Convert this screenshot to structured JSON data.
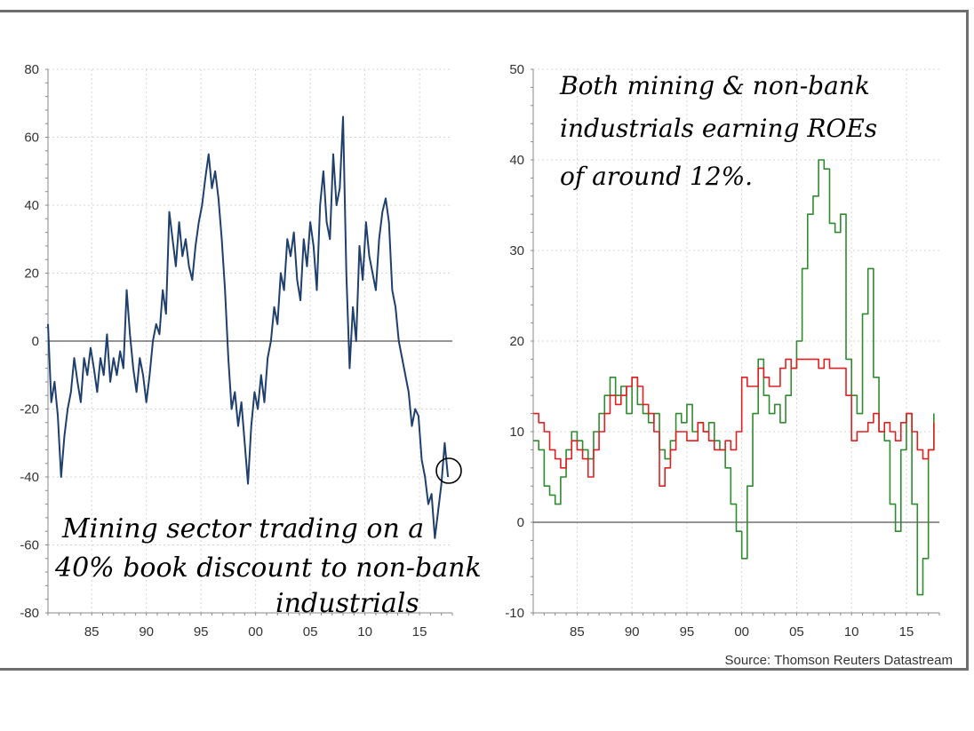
{
  "source": "Source: Thomson Reuters Datastream",
  "chart_data": [
    {
      "type": "line",
      "xlim": [
        1981,
        2018
      ],
      "ylim": [
        -80,
        80
      ],
      "x_ticks": [
        1985,
        1990,
        1995,
        2000,
        2005,
        2010,
        2015
      ],
      "x_tick_labels": [
        "85",
        "90",
        "95",
        "00",
        "05",
        "10",
        "15"
      ],
      "y_ticks": [
        -80,
        -60,
        -40,
        -20,
        0,
        20,
        40,
        60,
        80
      ],
      "y_tick_labels": [
        "-80",
        "-60",
        "-40",
        "-20",
        "0",
        "20",
        "40",
        "60",
        "80"
      ],
      "grid": true,
      "zero_line": true,
      "annotation_lines": [
        "Mining sector trading on a",
        "40% book discount to non-bank",
        "industrials"
      ],
      "series": [
        {
          "color": "#1f3f6e",
          "x": [
            1981.0,
            1981.3,
            1981.6,
            1981.9,
            1982.2,
            1982.5,
            1982.8,
            1983.1,
            1983.4,
            1983.7,
            1984.0,
            1984.3,
            1984.6,
            1984.9,
            1985.2,
            1985.5,
            1985.8,
            1986.1,
            1986.4,
            1986.7,
            1987.0,
            1987.3,
            1987.6,
            1987.9,
            1988.2,
            1988.5,
            1988.8,
            1989.1,
            1989.4,
            1989.7,
            1990.0,
            1990.3,
            1990.6,
            1990.9,
            1991.2,
            1991.5,
            1991.8,
            1992.1,
            1992.4,
            1992.7,
            1993.0,
            1993.3,
            1993.6,
            1993.9,
            1994.2,
            1994.5,
            1994.8,
            1995.1,
            1995.4,
            1995.7,
            1996.0,
            1996.3,
            1996.6,
            1996.9,
            1997.2,
            1997.5,
            1997.8,
            1998.1,
            1998.4,
            1998.7,
            1999.0,
            1999.3,
            1999.6,
            1999.9,
            2000.2,
            2000.5,
            2000.8,
            2001.1,
            2001.4,
            2001.7,
            2002.0,
            2002.3,
            2002.6,
            2002.9,
            2003.2,
            2003.5,
            2003.8,
            2004.1,
            2004.4,
            2004.7,
            2005.0,
            2005.3,
            2005.6,
            2005.9,
            2006.2,
            2006.5,
            2006.8,
            2007.1,
            2007.4,
            2007.7,
            2008.0,
            2008.3,
            2008.6,
            2008.9,
            2009.2,
            2009.5,
            2009.8,
            2010.1,
            2010.4,
            2010.7,
            2011.0,
            2011.3,
            2011.6,
            2011.9,
            2012.2,
            2012.5,
            2012.8,
            2013.1,
            2013.4,
            2013.7,
            2014.0,
            2014.3,
            2014.6,
            2014.9,
            2015.2,
            2015.5,
            2015.8,
            2016.1,
            2016.4,
            2016.7,
            2017.0,
            2017.3,
            2017.6
          ],
          "y": [
            5,
            -18,
            -12,
            -22,
            -40,
            -28,
            -20,
            -15,
            -5,
            -12,
            -18,
            -5,
            -10,
            -2,
            -8,
            -15,
            -5,
            -10,
            2,
            -12,
            -5,
            -10,
            -3,
            -8,
            15,
            2,
            -8,
            -15,
            -5,
            -10,
            -18,
            -10,
            0,
            5,
            2,
            15,
            8,
            38,
            30,
            22,
            35,
            25,
            30,
            22,
            18,
            28,
            35,
            40,
            48,
            55,
            45,
            50,
            42,
            30,
            15,
            -5,
            -20,
            -15,
            -25,
            -18,
            -30,
            -42,
            -25,
            -15,
            -20,
            -10,
            -18,
            -5,
            0,
            10,
            5,
            20,
            15,
            30,
            25,
            32,
            18,
            12,
            30,
            22,
            35,
            28,
            15,
            40,
            50,
            35,
            30,
            55,
            40,
            45,
            66,
            20,
            -8,
            10,
            0,
            28,
            18,
            35,
            25,
            20,
            15,
            30,
            38,
            42,
            35,
            15,
            10,
            0,
            -5,
            -10,
            -15,
            -25,
            -20,
            -22,
            -35,
            -40,
            -48,
            -45,
            -58,
            -50,
            -42,
            -30,
            -40
          ]
        }
      ]
    },
    {
      "type": "line",
      "xlim": [
        1981,
        2018
      ],
      "ylim": [
        -10,
        50
      ],
      "x_ticks": [
        1985,
        1990,
        1995,
        2000,
        2005,
        2010,
        2015
      ],
      "x_tick_labels": [
        "85",
        "90",
        "95",
        "00",
        "05",
        "10",
        "15"
      ],
      "y_ticks": [
        -10,
        0,
        10,
        20,
        30,
        40,
        50
      ],
      "y_tick_labels": [
        "-10",
        "0",
        "10",
        "20",
        "30",
        "40",
        "50"
      ],
      "grid": true,
      "zero_line": true,
      "annotation_lines": [
        "Both mining & non-bank",
        "industrials earning ROEs",
        "of around 12%."
      ],
      "series": [
        {
          "color": "#2e8b2e",
          "x": [
            1981,
            1981.5,
            1982,
            1982.5,
            1983,
            1983.5,
            1984,
            1984.5,
            1985,
            1985.5,
            1986,
            1986.5,
            1987,
            1987.5,
            1988,
            1988.5,
            1989,
            1989.5,
            1990,
            1990.5,
            1991,
            1991.5,
            1992,
            1992.5,
            1993,
            1993.5,
            1994,
            1994.5,
            1995,
            1995.5,
            1996,
            1996.5,
            1997,
            1997.5,
            1998,
            1998.5,
            1999,
            1999.5,
            2000,
            2000.5,
            2001,
            2001.5,
            2002,
            2002.5,
            2003,
            2003.5,
            2004,
            2004.5,
            2005,
            2005.5,
            2006,
            2006.5,
            2007,
            2007.5,
            2008,
            2008.5,
            2009,
            2009.5,
            2010,
            2010.5,
            2011,
            2011.5,
            2012,
            2012.5,
            2013,
            2013.5,
            2014,
            2014.5,
            2015,
            2015.5,
            2016,
            2016.5,
            2017,
            2017.5
          ],
          "y": [
            9,
            8,
            4,
            3,
            2,
            5,
            8,
            10,
            9,
            8,
            7,
            10,
            12,
            14,
            16,
            14,
            15,
            12,
            16,
            13,
            12,
            11,
            12,
            8,
            7,
            9,
            12,
            11,
            13,
            10,
            11,
            10,
            11,
            9,
            8,
            6,
            2,
            -1,
            -4,
            4,
            12,
            18,
            14,
            12,
            13,
            11,
            14,
            17,
            20,
            28,
            34,
            36,
            40,
            39,
            33,
            32,
            34,
            18,
            14,
            12,
            23,
            28,
            16,
            10,
            9,
            2,
            -1,
            8,
            12,
            2,
            -8,
            -4,
            8,
            12
          ]
        },
        {
          "color": "#e02020",
          "x": [
            1981,
            1981.5,
            1982,
            1982.5,
            1983,
            1983.5,
            1984,
            1984.5,
            1985,
            1985.5,
            1986,
            1986.5,
            1987,
            1987.5,
            1988,
            1988.5,
            1989,
            1989.5,
            1990,
            1990.5,
            1991,
            1991.5,
            1992,
            1992.5,
            1993,
            1993.5,
            1994,
            1994.5,
            1995,
            1995.5,
            1996,
            1996.5,
            1997,
            1997.5,
            1998,
            1998.5,
            1999,
            1999.5,
            2000,
            2000.5,
            2001,
            2001.5,
            2002,
            2002.5,
            2003,
            2003.5,
            2004,
            2004.5,
            2005,
            2005.5,
            2006,
            2006.5,
            2007,
            2007.5,
            2008,
            2008.5,
            2009,
            2009.5,
            2010,
            2010.5,
            2011,
            2011.5,
            2012,
            2012.5,
            2013,
            2013.5,
            2014,
            2014.5,
            2015,
            2015.5,
            2016,
            2016.5,
            2017,
            2017.5
          ],
          "y": [
            12,
            11,
            10,
            8,
            7,
            6,
            7,
            9,
            8,
            7,
            5,
            8,
            10,
            12,
            14,
            13,
            14,
            15,
            16,
            15,
            13,
            12,
            10,
            4,
            6,
            8,
            10,
            10,
            9,
            9,
            11,
            10,
            9,
            8,
            8,
            9,
            8,
            10,
            16,
            15,
            15,
            17,
            16,
            15,
            15,
            17,
            18,
            17,
            18,
            18,
            18,
            18,
            17,
            18,
            17,
            17,
            17,
            14,
            9,
            10,
            10,
            11,
            12,
            10,
            11,
            10,
            9,
            11,
            12,
            10,
            8,
            7,
            8,
            11
          ]
        }
      ]
    }
  ]
}
